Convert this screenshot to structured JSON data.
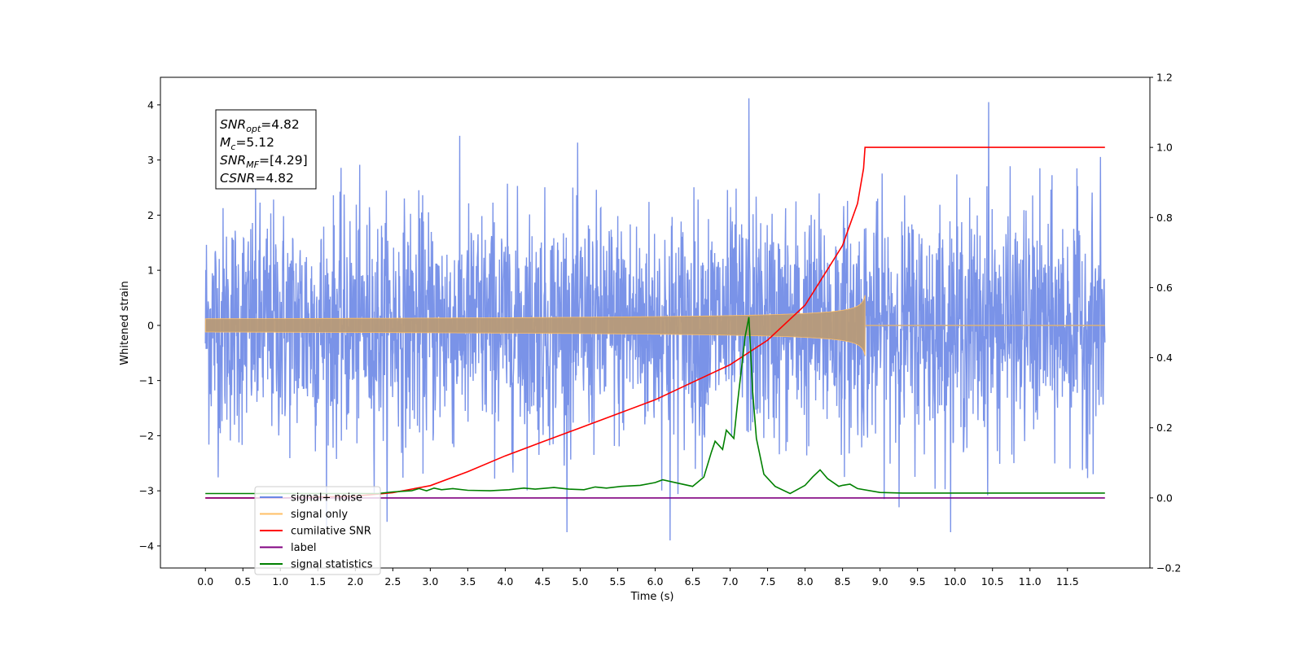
{
  "chart_data": {
    "type": "line",
    "xlabel": "Time (s)",
    "ylabel": "Whitened strain",
    "xlim": [
      -0.6,
      12.6
    ],
    "ylim": [
      -4.4,
      4.5
    ],
    "y2lim": [
      -0.2,
      1.2
    ],
    "x_ticks": [
      "0.0",
      "0.5",
      "1.0",
      "1.5",
      "2.0",
      "2.5",
      "3.0",
      "3.5",
      "4.0",
      "4.5",
      "5.0",
      "5.5",
      "6.0",
      "6.5",
      "7.0",
      "7.5",
      "8.0",
      "8.5",
      "9.0",
      "9.5",
      "10.0",
      "10.5",
      "11.0",
      "11.5"
    ],
    "y_ticks": [
      "4",
      "3",
      "2",
      "1",
      "0",
      "−1",
      "−2",
      "−3",
      "−4"
    ],
    "y2_ticks": [
      "1.2",
      "1.0",
      "0.8",
      "0.6",
      "0.4",
      "0.2",
      "0.0",
      "−0.2"
    ],
    "legend_position": "lower-left",
    "annotation": {
      "snr_opt": {
        "base": "SNR",
        "sub": "opt",
        "value": "=4.82"
      },
      "mc": {
        "base": "M",
        "sub": "c",
        "value": "=5.12"
      },
      "snr_mf": {
        "base": "SNR",
        "sub": "MF",
        "value": "=[4.29]"
      },
      "csnr": {
        "base": "CSNR",
        "sub": "",
        "value": "=4.82"
      }
    },
    "series": [
      {
        "name": "signal+ noise",
        "axis": "left",
        "color": "#6b87e6",
        "description_of_shape": "whitened noise with std ~1, amplitude spikes up to ~4.1",
        "x_range": [
          0.0,
          12.0
        ],
        "peak_max": 4.12,
        "peak_min": -3.9
      },
      {
        "name": "signal only",
        "axis": "left",
        "color": "#ffbf66",
        "chirp_start": 0.0,
        "chirp_end": 8.8,
        "final_amplitude": 0.55,
        "x_range": [
          0.0,
          12.0
        ]
      },
      {
        "name": "cumilative SNR",
        "axis": "right",
        "color": "#ff0000",
        "x": [
          0.0,
          1.0,
          2.0,
          2.5,
          3.0,
          3.5,
          4.0,
          4.5,
          5.0,
          5.5,
          6.0,
          6.5,
          7.0,
          7.5,
          8.0,
          8.5,
          8.7,
          8.78,
          8.8,
          12.0
        ],
        "y": [
          0.0,
          0.0,
          0.005,
          0.015,
          0.035,
          0.075,
          0.12,
          0.16,
          0.2,
          0.24,
          0.28,
          0.33,
          0.38,
          0.45,
          0.55,
          0.72,
          0.84,
          0.94,
          1.0,
          1.0
        ]
      },
      {
        "name": "label",
        "axis": "right",
        "color": "#800080",
        "x": [
          0.0,
          12.0
        ],
        "y": [
          0.0,
          0.0
        ]
      },
      {
        "name": "signal statistics",
        "axis": "left",
        "color": "#008000",
        "x": [
          0.0,
          2.3,
          2.5,
          2.75,
          2.85,
          2.95,
          3.05,
          3.15,
          3.3,
          3.5,
          3.8,
          4.05,
          4.25,
          4.4,
          4.65,
          4.85,
          5.05,
          5.2,
          5.35,
          5.55,
          5.8,
          6.0,
          6.1,
          6.3,
          6.5,
          6.65,
          6.75,
          6.8,
          6.9,
          6.95,
          7.05,
          7.1,
          7.2,
          7.25,
          7.3,
          7.35,
          7.45,
          7.6,
          7.8,
          8.0,
          8.1,
          8.2,
          8.3,
          8.45,
          8.5,
          8.6,
          8.7,
          9.0,
          9.3,
          12.0
        ],
        "y": [
          -3.05,
          -3.05,
          -3.02,
          -3.0,
          -2.96,
          -3.0,
          -2.95,
          -2.98,
          -2.96,
          -2.99,
          -3.0,
          -2.98,
          -2.95,
          -2.97,
          -2.94,
          -2.97,
          -2.98,
          -2.93,
          -2.95,
          -2.92,
          -2.9,
          -2.85,
          -2.8,
          -2.86,
          -2.92,
          -2.75,
          -2.3,
          -2.1,
          -2.25,
          -1.9,
          -2.05,
          -1.4,
          -0.2,
          0.15,
          -1.2,
          -2.05,
          -2.7,
          -2.92,
          -3.05,
          -2.9,
          -2.75,
          -2.62,
          -2.78,
          -2.92,
          -2.9,
          -2.88,
          -2.96,
          -3.03,
          -3.04,
          -3.04
        ]
      }
    ]
  }
}
